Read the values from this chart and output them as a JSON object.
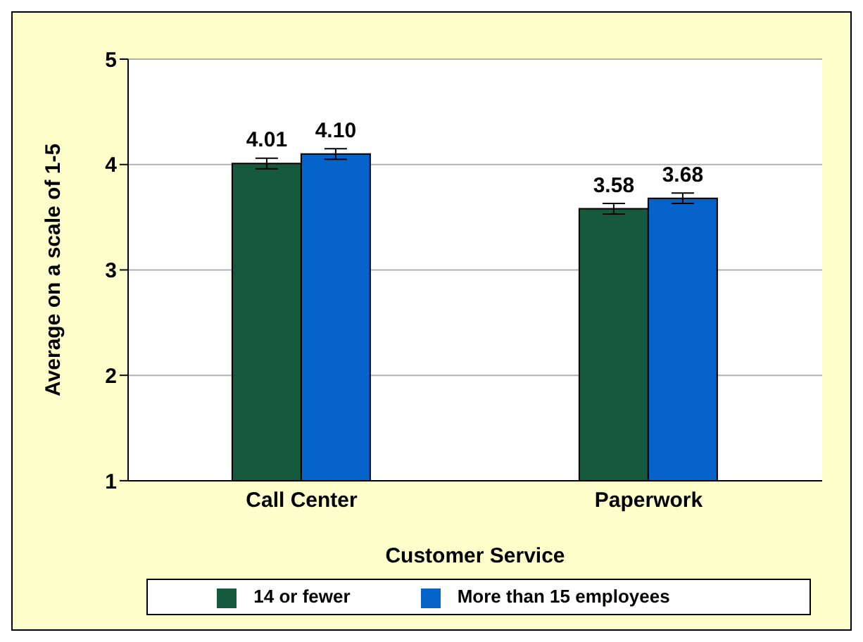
{
  "chart_data": {
    "type": "bar",
    "xlabel": "Customer Service",
    "ylabel": "Average on a scale of 1-5",
    "categories": [
      "Call Center",
      "Paperwork"
    ],
    "series": [
      {
        "name": "14 or fewer",
        "color": "#155a3c",
        "values": [
          4.01,
          3.58
        ],
        "value_labels": [
          "4.01",
          "3.58"
        ],
        "errors": [
          0.05,
          0.05
        ]
      },
      {
        "name": "More than 15 employees",
        "color": "#0563c9",
        "values": [
          4.1,
          3.68
        ],
        "value_labels": [
          "4.10",
          "3.68"
        ],
        "errors": [
          0.05,
          0.05
        ]
      }
    ],
    "ylim": [
      1,
      5
    ],
    "yticks": [
      1,
      2,
      3,
      4,
      5
    ],
    "grid": "y",
    "legend": "bottom"
  }
}
